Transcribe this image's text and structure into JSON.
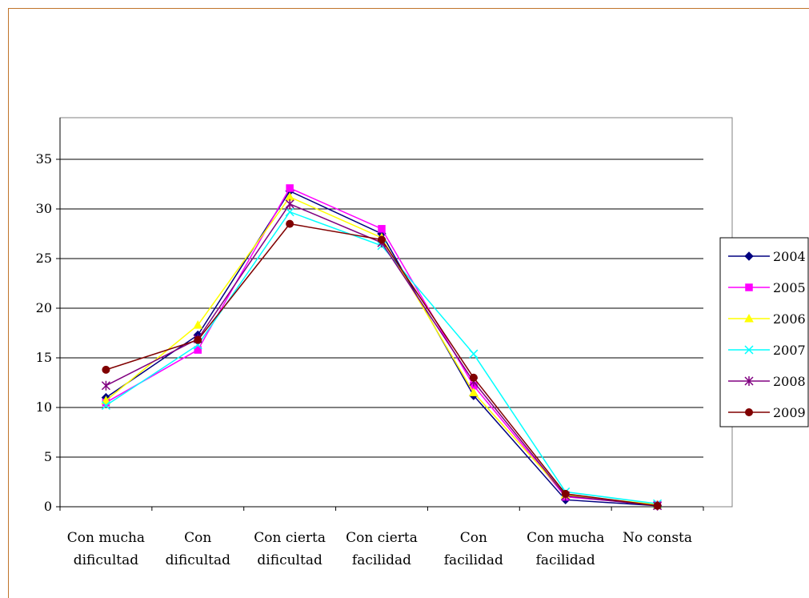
{
  "chart_data": {
    "type": "line",
    "categories": [
      [
        "Con mucha",
        "dificultad"
      ],
      [
        "Con",
        "dificultad"
      ],
      [
        "Con cierta",
        "dificultad"
      ],
      [
        "Con cierta",
        "facilidad"
      ],
      [
        "Con",
        "facilidad"
      ],
      [
        "Con mucha",
        "facilidad"
      ],
      [
        "No consta"
      ]
    ],
    "ylim": [
      0,
      35
    ],
    "yticks": [
      0,
      5,
      10,
      15,
      20,
      25,
      30,
      35
    ],
    "grid": true,
    "legend_position": "right",
    "series": [
      {
        "name": "2004",
        "color": "#000080",
        "marker": "diamond",
        "values": [
          11.0,
          17.3,
          31.8,
          27.5,
          11.2,
          0.7,
          0.1
        ]
      },
      {
        "name": "2005",
        "color": "#ff00ff",
        "marker": "square",
        "values": [
          10.5,
          15.8,
          32.1,
          28.0,
          12.2,
          1.0,
          0.2
        ]
      },
      {
        "name": "2006",
        "color": "#ffff00",
        "marker": "triangle",
        "values": [
          10.7,
          18.3,
          31.2,
          27.1,
          11.5,
          1.2,
          0.2
        ]
      },
      {
        "name": "2007",
        "color": "#00ffff",
        "marker": "x",
        "values": [
          10.2,
          16.3,
          29.7,
          26.3,
          15.4,
          1.5,
          0.3
        ]
      },
      {
        "name": "2008",
        "color": "#800080",
        "marker": "star",
        "values": [
          12.2,
          16.9,
          30.5,
          26.6,
          12.6,
          1.1,
          0.1
        ]
      },
      {
        "name": "2009",
        "color": "#800000",
        "marker": "circle",
        "values": [
          13.8,
          16.8,
          28.5,
          26.9,
          13.0,
          1.3,
          0.1
        ]
      }
    ]
  }
}
